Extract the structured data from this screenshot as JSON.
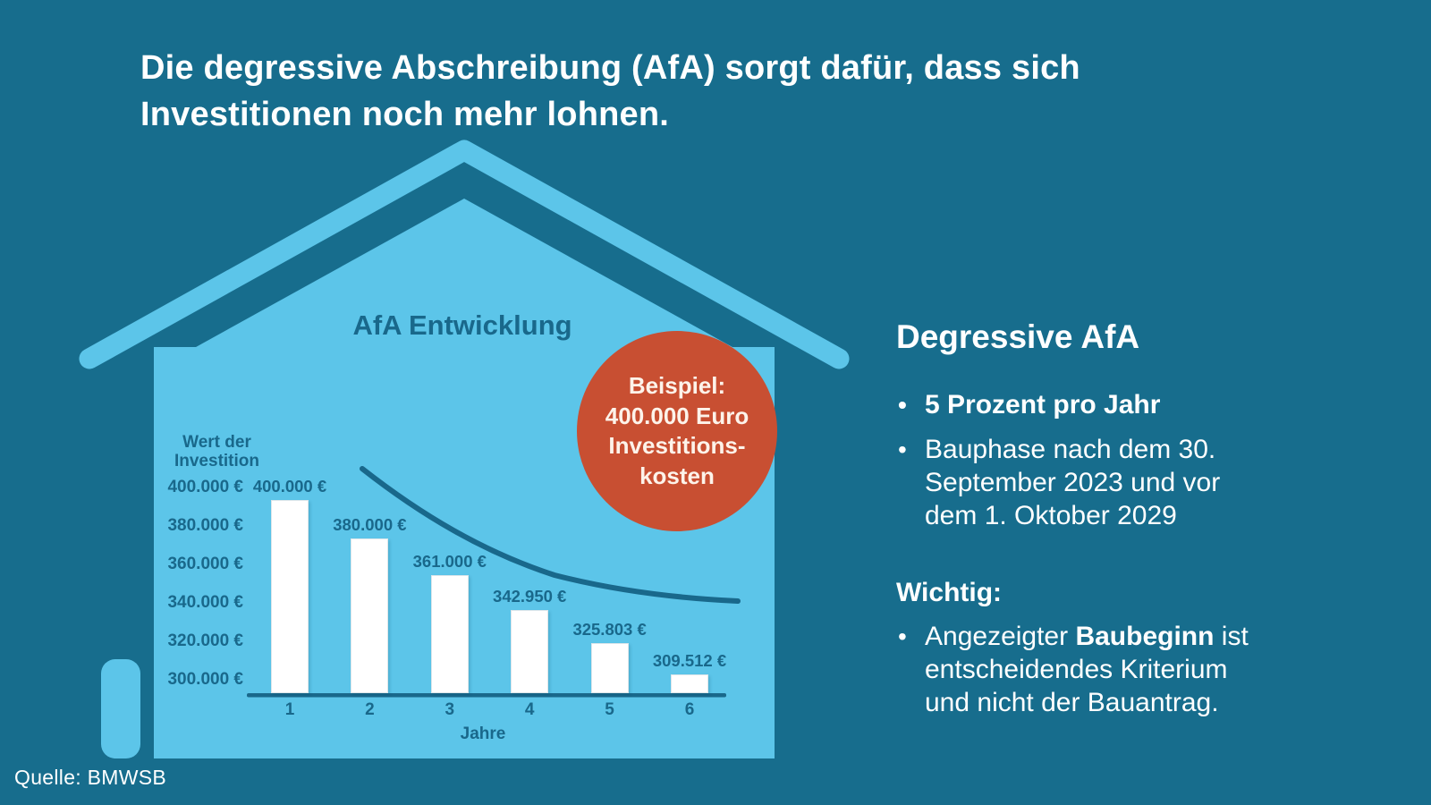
{
  "colors": {
    "bg": "#176d8d",
    "light": "#5cc5e9",
    "dark": "#19688b",
    "red": "#c84f32",
    "cream": "#fdf3ea",
    "white": "#ffffff",
    "barborder": "#dde6ea"
  },
  "header": {
    "line1": "Die degressive Abschreibung (AfA) sorgt dafür, dass sich",
    "line2": "Investitionen noch mehr lohnen."
  },
  "chart_data": {
    "type": "bar",
    "title": "AfA Entwicklung",
    "xlabel": "Jahre",
    "ylabel": "Wert der Investition",
    "ylabel_lines": [
      "Wert der",
      "Investition"
    ],
    "categories": [
      "1",
      "2",
      "3",
      "4",
      "5",
      "6"
    ],
    "values": [
      400000,
      380000,
      361000,
      342950,
      325803,
      309512
    ],
    "value_labels": [
      "400.000 €",
      "380.000 €",
      "361.000 €",
      "342.950 €",
      "325.803 €",
      "309.512 €"
    ],
    "y_ticks": [
      "400.000 €",
      "380.000 €",
      "360.000 €",
      "340.000 €",
      "320.000 €",
      "300.000 €"
    ],
    "ylim": [
      300000,
      400000
    ],
    "grid": false,
    "legend": null,
    "annotations": [
      "exponential decay trend curve above bars",
      "Beispiel: 400.000 Euro Investitionskosten"
    ]
  },
  "badge": {
    "line1": "Beispiel:",
    "line2": "400.000 Euro",
    "line3": "Investitions-",
    "line4": "kosten"
  },
  "panel": {
    "heading": "Degressive AfA",
    "bullet1": "5 Prozent pro Jahr",
    "bullet2_lines": [
      "Bauphase nach dem 30.",
      "September 2023 und vor",
      "dem 1. Oktober 2029"
    ],
    "subheading": "Wichtig:",
    "bullet3_pre": "Angezeigter ",
    "bullet3_bold": "Baubeginn",
    "bullet3_post": " ist",
    "bullet3_line2": "entscheidendes Kriterium",
    "bullet3_line3": "und nicht der Bauantrag."
  },
  "source": {
    "label": "Quelle: BMWSB"
  }
}
